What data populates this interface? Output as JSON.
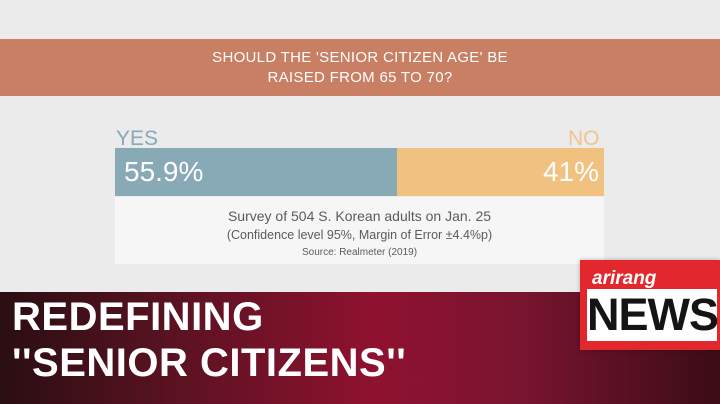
{
  "question": {
    "line1": "SHOULD THE 'SENIOR CITIZEN AGE' BE",
    "line2": "RAISED FROM 65 TO 70?"
  },
  "chart_data": {
    "type": "bar",
    "orientation": "horizontal-stacked",
    "categories": [
      "YES",
      "NO"
    ],
    "values": [
      55.9,
      41
    ],
    "value_labels": [
      "55.9%",
      "41%"
    ],
    "colors": [
      "#88a9b6",
      "#f1c180"
    ],
    "label_colors": [
      "#86aab9",
      "#f0c48d"
    ]
  },
  "survey": {
    "main": "Survey of 504 S. Korean adults on Jan. 25",
    "detail": "(Confidence level 95%, Margin of Error ±4.4%p)",
    "source": "Source: Realmeter (2019)"
  },
  "headline": {
    "line1": "REDEFINING",
    "line2": "''SENIOR CITIZENS''"
  },
  "logo": {
    "brand": "arirang",
    "main": "NEWS"
  }
}
